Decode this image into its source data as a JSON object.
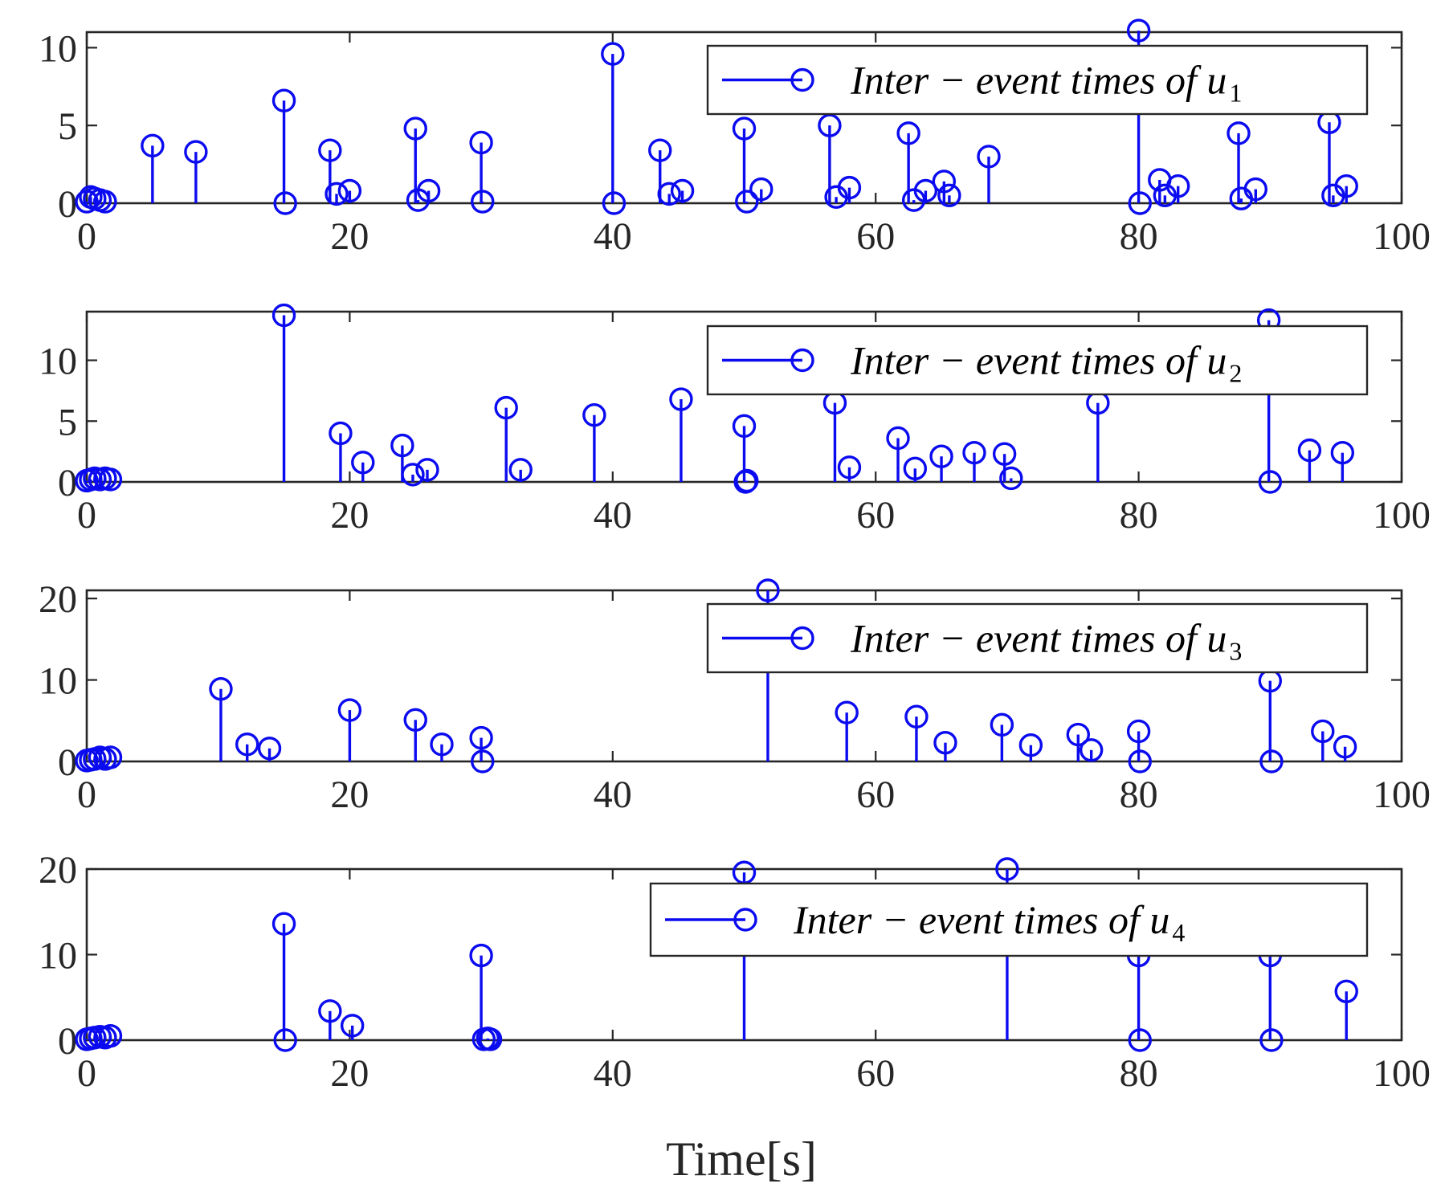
{
  "figure": {
    "xlabel": "Time[s]",
    "color": "#0b0bf0"
  },
  "chart_data": [
    {
      "type": "stem",
      "legend": {
        "text": "Inter − event times of u",
        "subscript": "1",
        "position": "top-right"
      },
      "xlim": [
        0,
        100
      ],
      "ylim": [
        0,
        11
      ],
      "xticks": [
        0,
        20,
        40,
        60,
        80,
        100
      ],
      "yticks": [
        0,
        5,
        10
      ],
      "x": [
        0,
        0.3,
        0.6,
        1.0,
        1.4,
        5.0,
        8.3,
        15.0,
        15.1,
        18.5,
        19.0,
        20.0,
        25.0,
        25.2,
        26.0,
        30.0,
        30.1,
        40.0,
        40.1,
        43.6,
        44.3,
        45.3,
        50.0,
        50.2,
        51.3,
        56.5,
        57.0,
        58.0,
        62.5,
        62.9,
        63.8,
        65.2,
        65.6,
        68.6,
        80.0,
        80.1,
        81.6,
        82.0,
        83.0,
        87.6,
        87.8,
        88.9,
        94.5,
        94.8,
        95.8
      ],
      "y": [
        0.1,
        0.4,
        0.3,
        0.2,
        0.1,
        3.7,
        3.3,
        6.6,
        0.0,
        3.4,
        0.6,
        0.8,
        4.8,
        0.2,
        0.8,
        3.9,
        0.1,
        9.6,
        0.0,
        3.4,
        0.6,
        0.8,
        4.8,
        0.1,
        0.9,
        5.0,
        0.4,
        1.0,
        4.5,
        0.2,
        0.8,
        1.4,
        0.5,
        3.0,
        11.1,
        0.0,
        1.5,
        0.5,
        1.1,
        4.5,
        0.3,
        0.9,
        5.2,
        0.5,
        1.1
      ]
    },
    {
      "type": "stem",
      "legend": {
        "text": "Inter − event times of u",
        "subscript": "2",
        "position": "top-right"
      },
      "xlim": [
        0,
        100
      ],
      "ylim": [
        0,
        14
      ],
      "xticks": [
        0,
        20,
        40,
        60,
        80,
        100
      ],
      "yticks": [
        0,
        5,
        10
      ],
      "x": [
        0,
        0.3,
        0.6,
        1.0,
        1.4,
        1.8,
        15.0,
        19.3,
        21.0,
        24.0,
        24.8,
        25.9,
        31.9,
        33.0,
        38.6,
        45.2,
        50.0,
        50.1,
        50.2,
        56.9,
        58.0,
        61.7,
        63.0,
        65.0,
        67.5,
        69.8,
        70.3,
        76.9,
        89.9,
        90.0,
        93.0,
        95.5
      ],
      "y": [
        0.1,
        0.2,
        0.3,
        0.2,
        0.3,
        0.2,
        13.7,
        4.0,
        1.6,
        3.0,
        0.6,
        1.0,
        6.1,
        1.0,
        5.5,
        6.8,
        4.6,
        0.0,
        0.1,
        6.5,
        1.2,
        3.6,
        1.1,
        2.1,
        2.4,
        2.3,
        0.3,
        6.5,
        13.3,
        0.0,
        2.6,
        2.4
      ]
    },
    {
      "type": "stem",
      "legend": {
        "text": "Inter − event times of u",
        "subscript": "3",
        "position": "top-right"
      },
      "xlim": [
        0,
        100
      ],
      "ylim": [
        0,
        21
      ],
      "xticks": [
        0,
        20,
        40,
        60,
        80,
        100
      ],
      "yticks": [
        0,
        10,
        20
      ],
      "x": [
        0,
        0.3,
        0.6,
        1.0,
        1.4,
        1.8,
        10.2,
        12.2,
        13.9,
        20.0,
        25.0,
        27.0,
        30.0,
        30.1,
        51.8,
        57.8,
        63.1,
        65.3,
        69.6,
        71.8,
        75.4,
        76.4,
        80.0,
        80.1,
        90.0,
        90.1,
        94.0,
        95.7
      ],
      "y": [
        0.1,
        0.2,
        0.3,
        0.5,
        0.3,
        0.5,
        8.9,
        2.1,
        1.6,
        6.3,
        5.1,
        2.1,
        2.9,
        0.0,
        21.0,
        6.0,
        5.5,
        2.3,
        4.5,
        2.0,
        3.3,
        1.4,
        3.7,
        0.0,
        9.9,
        0.0,
        3.7,
        1.8
      ]
    },
    {
      "type": "stem",
      "legend": {
        "text": "Inter − event times of u",
        "subscript": "4",
        "position": "top-right"
      },
      "xlim": [
        0,
        100
      ],
      "ylim": [
        0,
        20
      ],
      "xticks": [
        0,
        20,
        40,
        60,
        80,
        100
      ],
      "yticks": [
        0,
        10,
        20
      ],
      "x": [
        0,
        0.3,
        0.6,
        1.0,
        1.4,
        1.8,
        15.0,
        15.1,
        18.5,
        20.2,
        30.0,
        30.2,
        30.5,
        30.7,
        50.0,
        70.0,
        80.0,
        80.1,
        90.0,
        90.1,
        95.8
      ],
      "y": [
        0.1,
        0.2,
        0.3,
        0.4,
        0.3,
        0.5,
        13.6,
        0.0,
        3.4,
        1.7,
        9.9,
        0.1,
        0.2,
        0.1,
        19.6,
        20.0,
        9.9,
        0.0,
        9.9,
        0.0,
        5.7
      ]
    }
  ]
}
